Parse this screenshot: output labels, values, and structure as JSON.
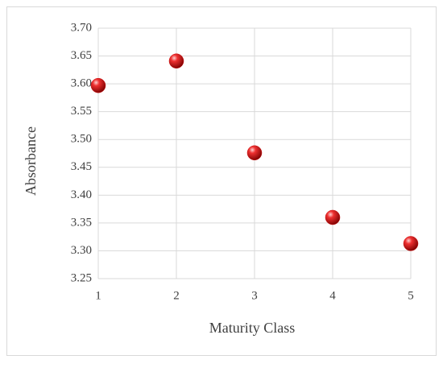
{
  "chart_data": {
    "type": "scatter",
    "x_label": "Maturity Class",
    "y_label": "Absorbance",
    "series": [
      {
        "color": "#d01010",
        "x": [
          1,
          2,
          3,
          4,
          5
        ],
        "values": [
          3.597,
          3.641,
          3.476,
          3.36,
          3.313
        ]
      }
    ],
    "xlim": [
      1,
      5
    ],
    "xticks": [
      1,
      2,
      3,
      4,
      5
    ],
    "ylim": [
      3.25,
      3.7
    ],
    "yticks": [
      3.25,
      {
        "value": 3.3,
        "label": "3.30"
      },
      3.35,
      {
        "value": 3.4,
        "label": "3.40"
      },
      3.45,
      {
        "value": 3.5,
        "label": "3.50"
      },
      3.55,
      {
        "value": 3.6,
        "label": "3.60"
      },
      3.65,
      {
        "value": 3.7,
        "label": "3.70"
      }
    ],
    "grid": true
  }
}
